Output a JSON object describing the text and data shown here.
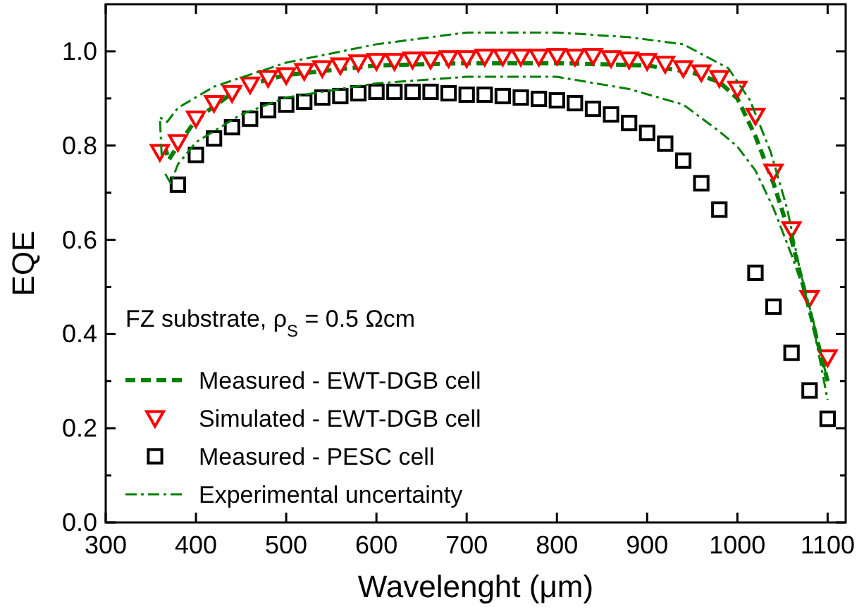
{
  "chart_data": {
    "type": "line",
    "xlabel": "Wavelenght (μm)",
    "ylabel": "EQE",
    "xlim": [
      300,
      1120
    ],
    "ylim": [
      0,
      1.1
    ],
    "xticks": [
      300,
      400,
      500,
      600,
      700,
      800,
      900,
      1000,
      1100
    ],
    "yticks": [
      {
        "value": 0,
        "label": "0.0"
      },
      {
        "value": 0.1,
        "label": null
      },
      0.2,
      {
        "value": 0.3,
        "label": null
      },
      0.4,
      {
        "value": 0.5,
        "label": null
      },
      0.6,
      {
        "value": 0.7,
        "label": null
      },
      0.8,
      {
        "value": 0.9,
        "label": null
      },
      {
        "value": 1,
        "label": "1.0"
      }
    ],
    "grid": false,
    "legend": "bottom left",
    "annotations": [
      "FZ substrate, ρ$_{S}$ = 0.5 Ωcm"
    ],
    "series": [
      {
        "name": "Measured - EWT-DGB cell",
        "line_style": "dashed",
        "color": "#007f00",
        "x": [
          365,
          370,
          380,
          400,
          450,
          500,
          600,
          700,
          800,
          900,
          950,
          980,
          1000,
          1020,
          1040,
          1060,
          1080,
          1100
        ],
        "values": [
          0.8,
          0.77,
          0.8,
          0.855,
          0.925,
          0.95,
          0.97,
          0.975,
          0.975,
          0.97,
          0.955,
          0.935,
          0.9,
          0.82,
          0.72,
          0.6,
          0.45,
          0.3
        ]
      },
      {
        "name": "Simulated - EWT-DGB cell",
        "type": "scatter",
        "marker": "triangle",
        "color": "#ff0000",
        "x": [
          360,
          380,
          400,
          420,
          440,
          460,
          480,
          500,
          520,
          540,
          560,
          580,
          600,
          620,
          640,
          660,
          680,
          700,
          720,
          740,
          760,
          780,
          800,
          820,
          840,
          860,
          880,
          900,
          920,
          940,
          960,
          980,
          1000,
          1020,
          1040,
          1060,
          1080,
          1100
        ],
        "values": [
          0.786,
          0.807,
          0.857,
          0.89,
          0.911,
          0.929,
          0.943,
          0.949,
          0.958,
          0.964,
          0.97,
          0.976,
          0.979,
          0.979,
          0.982,
          0.982,
          0.985,
          0.985,
          0.988,
          0.988,
          0.988,
          0.988,
          0.99,
          0.988,
          0.99,
          0.985,
          0.982,
          0.979,
          0.973,
          0.964,
          0.955,
          0.943,
          0.92,
          0.863,
          0.744,
          0.622,
          0.476,
          0.35
        ]
      },
      {
        "name": "Measured - PESC cell",
        "type": "scatter",
        "marker": "square",
        "color": "#000000",
        "x": [
          380,
          400,
          420,
          440,
          460,
          480,
          500,
          520,
          540,
          560,
          580,
          600,
          620,
          640,
          660,
          680,
          700,
          720,
          740,
          760,
          780,
          800,
          820,
          840,
          860,
          880,
          900,
          920,
          940,
          960,
          980,
          1020,
          1040,
          1060,
          1080,
          1100
        ],
        "values": [
          0.717,
          0.78,
          0.815,
          0.839,
          0.857,
          0.875,
          0.887,
          0.893,
          0.902,
          0.905,
          0.911,
          0.914,
          0.914,
          0.914,
          0.914,
          0.911,
          0.908,
          0.908,
          0.905,
          0.902,
          0.899,
          0.896,
          0.89,
          0.878,
          0.866,
          0.848,
          0.827,
          0.804,
          0.768,
          0.72,
          0.664,
          0.53,
          0.458,
          0.36,
          0.28,
          0.22
        ]
      },
      {
        "name": "Experimental uncertainty",
        "line_style": "dashdot",
        "color": "#008000",
        "x": [
          362,
          360,
          368,
          380,
          420,
          500,
          600,
          700,
          800,
          880,
          940,
          990,
          1014,
          1037,
          1055,
          1070,
          1085,
          1100
        ],
        "values": [
          0.78,
          0.86,
          0.85,
          0.88,
          0.925,
          0.976,
          1.015,
          1.04,
          1.04,
          1.03,
          1.015,
          0.964,
          0.896,
          0.786,
          0.667,
          0.53,
          0.42,
          0.3
        ]
      },
      {
        "line_style": "dashdot",
        "color": "#008000",
        "x": [
          366,
          372,
          380,
          400,
          450,
          500,
          600,
          700,
          800,
          880,
          940,
          980,
          1000,
          1020,
          1040,
          1060,
          1080,
          1100
        ],
        "values": [
          0.74,
          0.72,
          0.76,
          0.807,
          0.866,
          0.902,
          0.932,
          0.946,
          0.946,
          0.92,
          0.887,
          0.83,
          0.798,
          0.747,
          0.667,
          0.568,
          0.458,
          0.26
        ]
      }
    ]
  }
}
